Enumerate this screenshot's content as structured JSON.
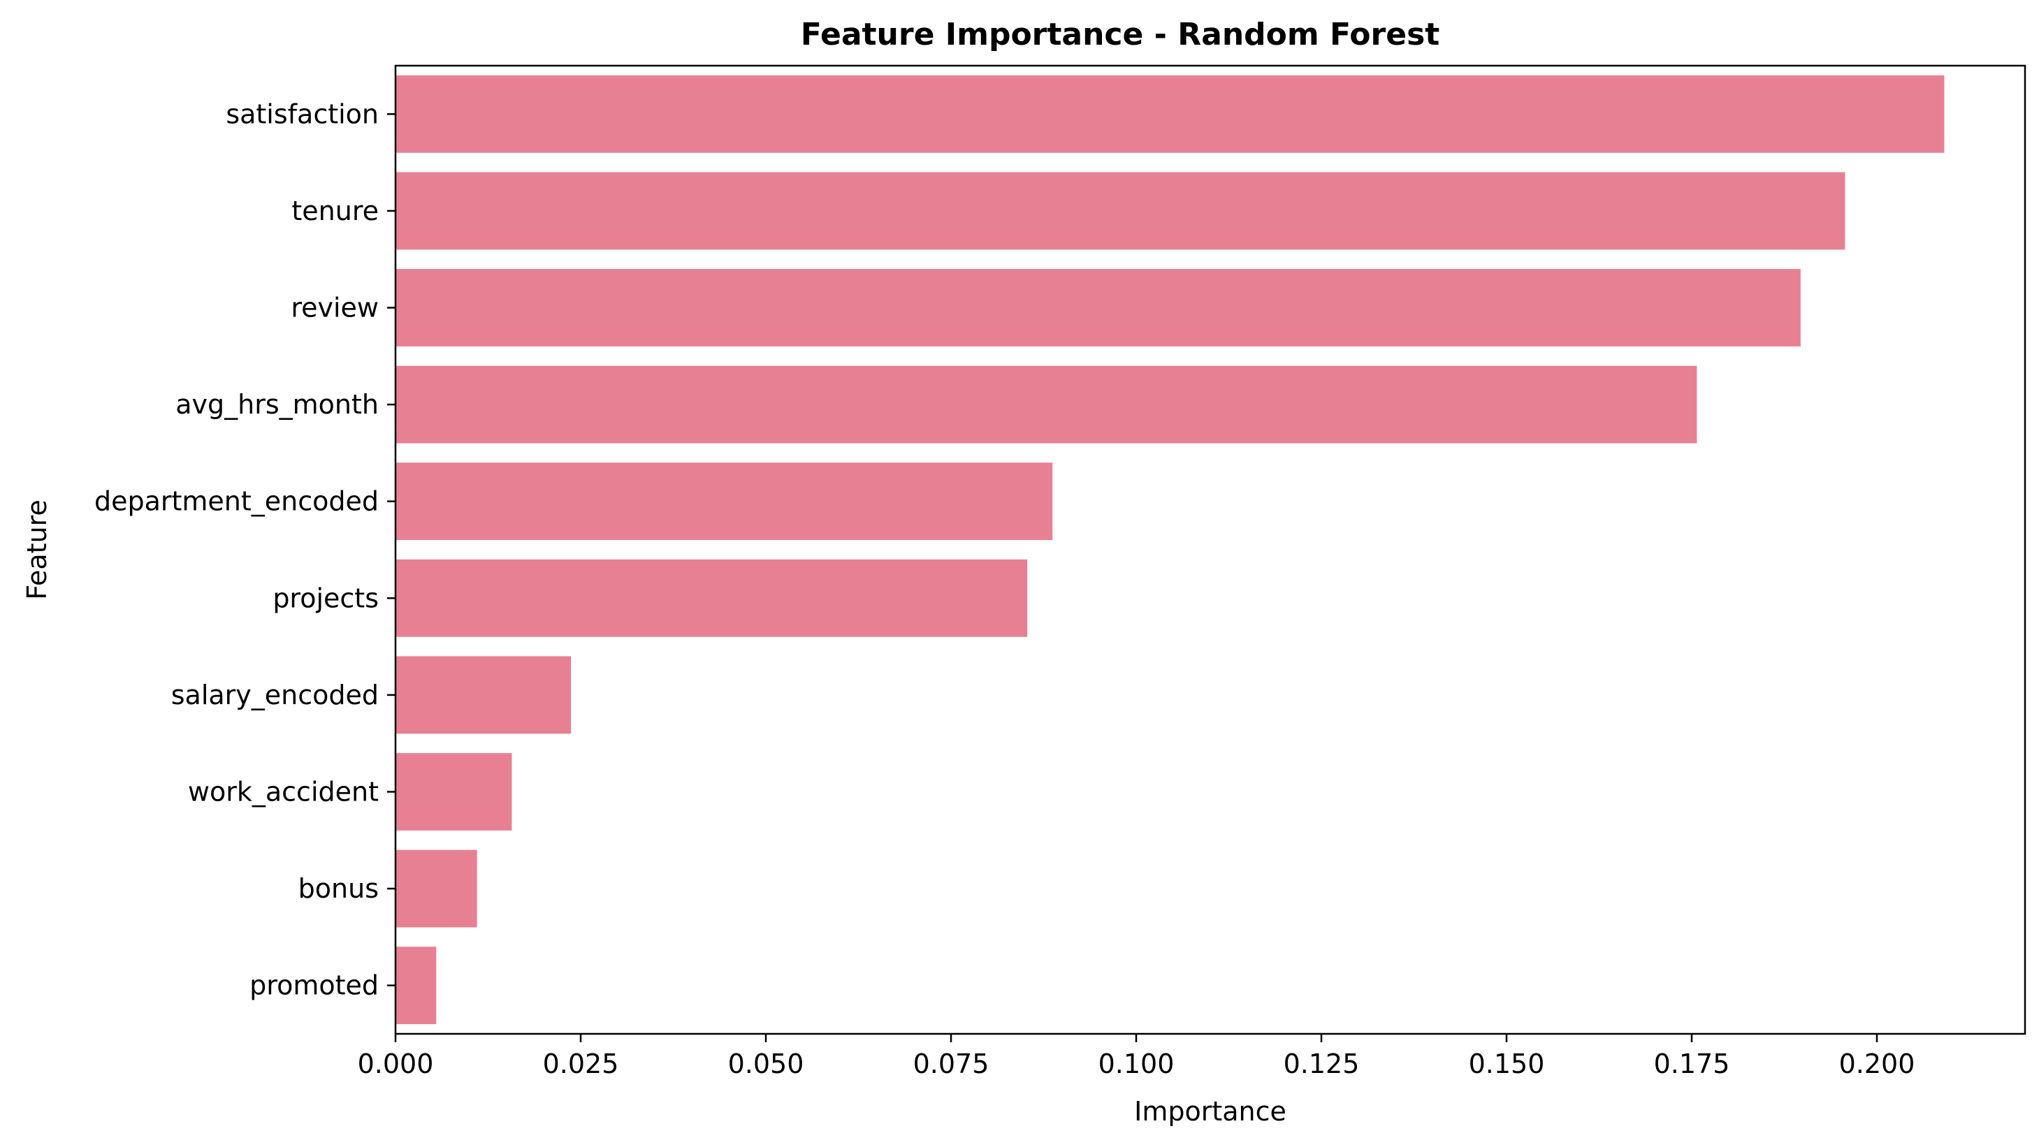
{
  "chart_data": {
    "type": "bar",
    "orientation": "horizontal",
    "title": "Feature Importance - Random Forest",
    "xlabel": "Importance",
    "ylabel": "Feature",
    "categories": [
      "satisfaction",
      "tenure",
      "review",
      "avg_hrs_month",
      "department_encoded",
      "projects",
      "salary_encoded",
      "work_accident",
      "bonus",
      "promoted"
    ],
    "values": [
      0.2091,
      0.1957,
      0.1897,
      0.1757,
      0.0887,
      0.0853,
      0.0237,
      0.0157,
      0.011,
      0.0055
    ],
    "xlim": [
      0,
      0.22
    ],
    "xticks": [
      0.0,
      0.025,
      0.05,
      0.075,
      0.1,
      0.125,
      0.15,
      0.175,
      0.2
    ],
    "xtick_labels": [
      "0.000",
      "0.025",
      "0.050",
      "0.075",
      "0.100",
      "0.125",
      "0.150",
      "0.175",
      "0.200"
    ],
    "bar_color": "#e88093",
    "grid": false,
    "legend": "none"
  }
}
